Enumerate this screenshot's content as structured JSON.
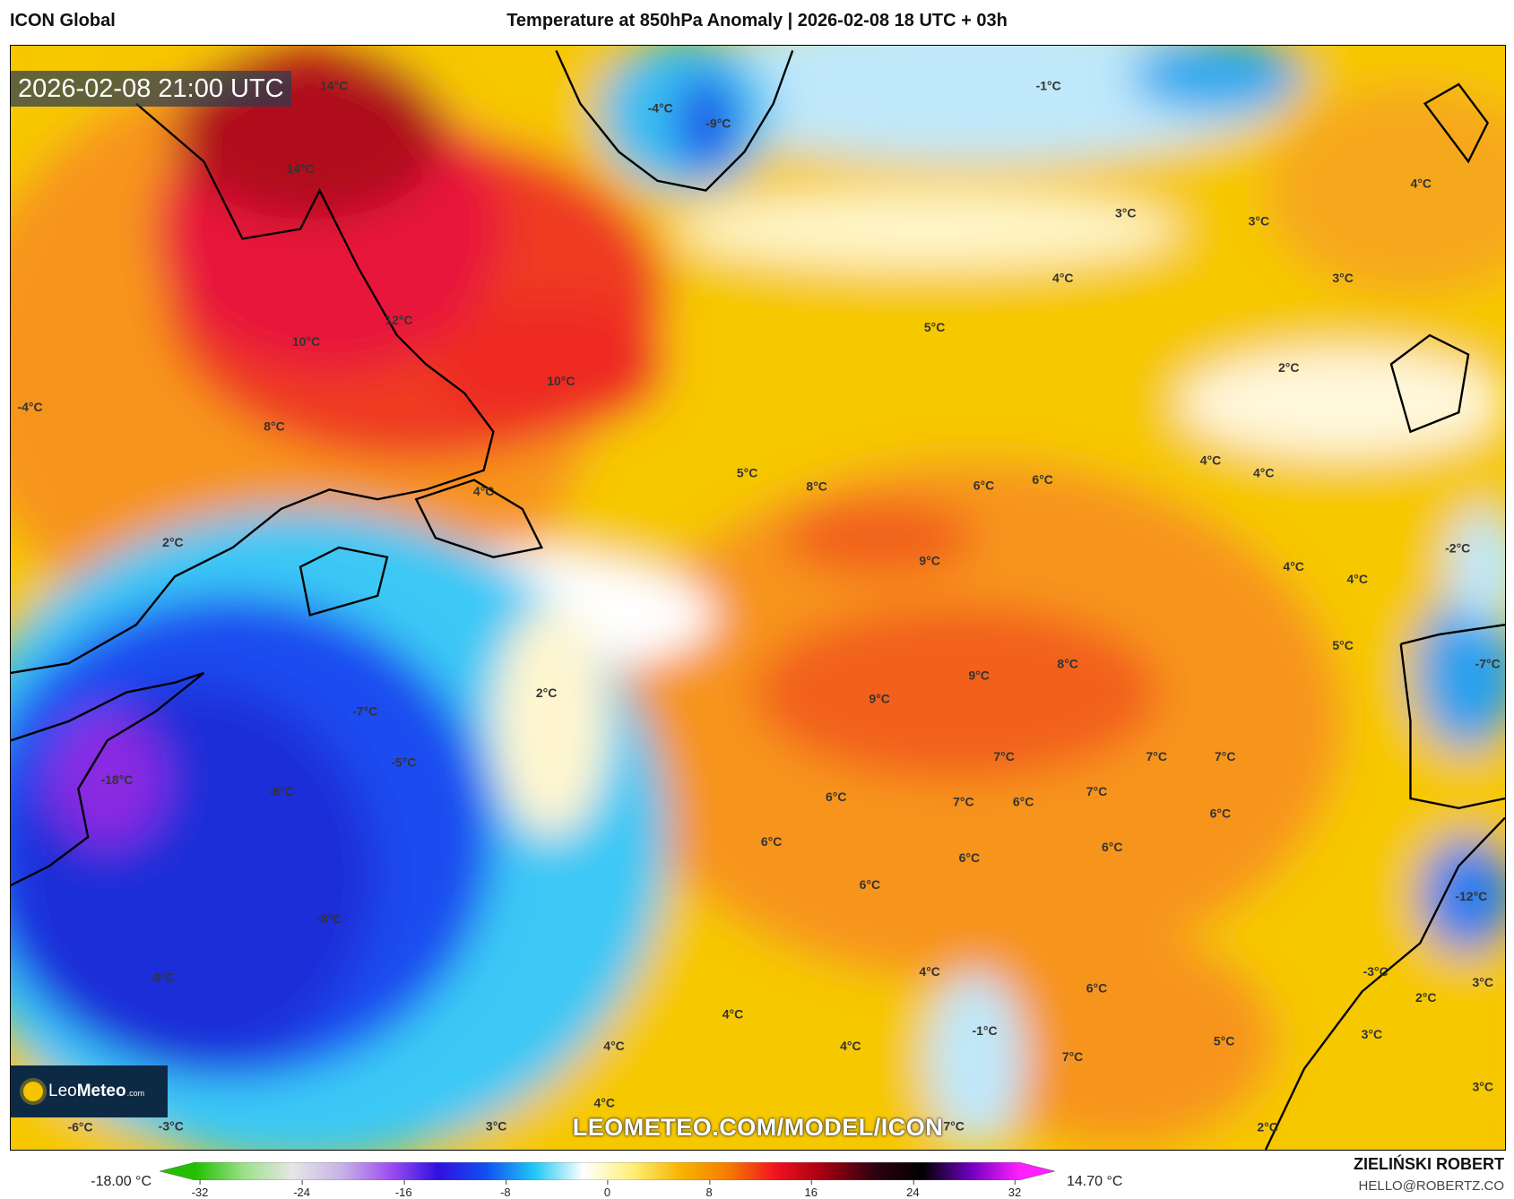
{
  "header": {
    "model": "ICON Global",
    "title": "Temperature at 850hPa Anomaly | 2026-02-08 18 UTC + 03h"
  },
  "map": {
    "timestamp": "2026-02-08 21:00 UTC",
    "watermark": "LEOMETEO.COM/MODEL/ICON",
    "logo": {
      "brand_light": "Leo",
      "brand_bold": "Meteo",
      "domain": ".com"
    },
    "labels": [
      "14°C",
      "14°C",
      "12°C",
      "10°C",
      "10°C",
      "8°C",
      "-4°C",
      "2°C",
      "4°C",
      "-4°C",
      "-9°C",
      "-1°C",
      "3°C",
      "3°C",
      "4°C",
      "4°C",
      "3°C",
      "5°C",
      "2°C",
      "5°C",
      "8°C",
      "6°C",
      "6°C",
      "4°C",
      "4°C",
      "9°C",
      "4°C",
      "4°C",
      "-2°C",
      "5°C",
      "-7°C",
      "8°C",
      "9°C",
      "9°C",
      "2°C",
      "-7°C",
      "-5°C",
      "-18°C",
      "-8°C",
      "7°C",
      "7°C",
      "7°C",
      "7°C",
      "6°C",
      "7°C",
      "6°C",
      "6°C",
      "6°C",
      "6°C",
      "6°C",
      "6°C",
      "-12°C",
      "-8°C",
      "-9°C",
      "4°C",
      "-3°C",
      "6°C",
      "2°C",
      "3°C",
      "-1°C",
      "4°C",
      "4°C",
      "4°C",
      "3°C",
      "5°C",
      "7°C",
      "4°C",
      "3°C",
      "7°C",
      "2°C",
      "3°C",
      "-6°C",
      "-3°C"
    ]
  },
  "colorbar": {
    "min_label": "-18.00 °C",
    "max_label": "14.70 °C",
    "ticks": [
      "-32",
      "-24",
      "-16",
      "-8",
      "0",
      "8",
      "16",
      "24",
      "32"
    ],
    "colors": [
      "#22c000",
      "#9be08a",
      "#e6e6e6",
      "#c8b4e6",
      "#a050f0",
      "#3010e0",
      "#1050f0",
      "#20c8f5",
      "#ffffff",
      "#fff07a",
      "#f7b500",
      "#f77b00",
      "#f01020",
      "#a00010",
      "#300010",
      "#000000",
      "#7000c0",
      "#ff20ff"
    ]
  },
  "credits": {
    "author": "ZIELIŃSKI ROBERT",
    "email": "HELLO@ROBERTZ.CO"
  }
}
